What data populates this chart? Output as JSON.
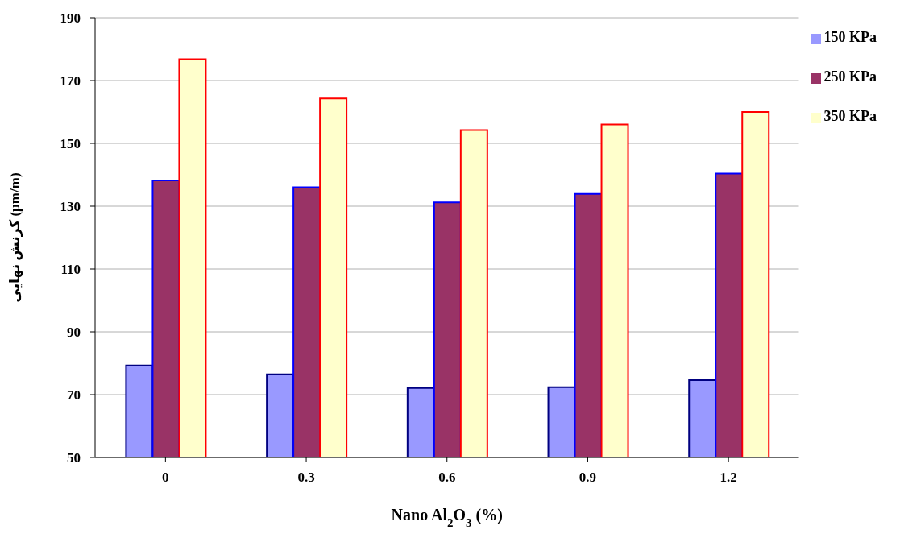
{
  "chart_data": {
    "type": "bar",
    "xlabel": "Nano Al$_{2}$O$_{3}$ (%)",
    "ylabel": "کرنش نهایی (µm/m)",
    "categories": [
      "0",
      "0.3",
      "0.6",
      "0.9",
      "1.2"
    ],
    "series": [
      {
        "name": "150 KPa",
        "color": "#9999ff",
        "values": [
          79.3,
          76.5,
          72.1,
          72.4,
          74.6
        ]
      },
      {
        "name": "250 KPa",
        "color": "#993366",
        "values": [
          138.2,
          136.0,
          131.2,
          133.9,
          140.4
        ]
      },
      {
        "name": "350 KPa",
        "color": "#ffffcc",
        "values": [
          176.8,
          164.3,
          154.2,
          156.0,
          160.0
        ]
      }
    ],
    "ylim": [
      50,
      190
    ],
    "yticks": [
      50,
      70,
      90,
      110,
      130,
      150,
      170,
      190
    ],
    "grid": "y",
    "legend": "top right"
  }
}
